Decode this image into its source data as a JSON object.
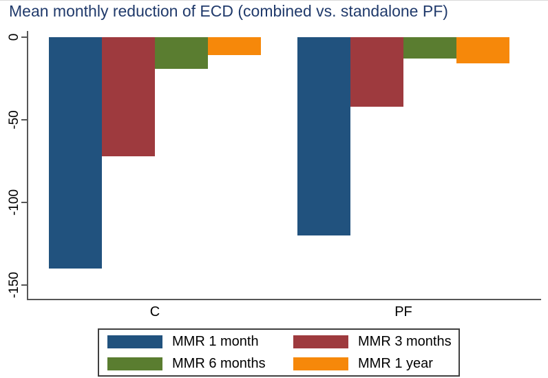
{
  "figure": {
    "title_color": "#203A6B",
    "background": "#FFFFFF"
  },
  "chart_data": {
    "type": "bar",
    "title": "Mean monthly reduction of ECD (combined vs. standalone PF)",
    "xlabel": "",
    "ylabel": "",
    "groups": [
      "C",
      "PF"
    ],
    "series": [
      {
        "name": "MMR 1 month",
        "color": "#21527E",
        "values": [
          -140,
          -120
        ]
      },
      {
        "name": "MMR 3 months",
        "color": "#9E3A3E",
        "values": [
          -72,
          -42
        ]
      },
      {
        "name": "MMR 6 months",
        "color": "#5A7D30",
        "values": [
          -19,
          -13
        ]
      },
      {
        "name": "MMR 1 year",
        "color": "#F6880A",
        "values": [
          -11,
          -16
        ]
      }
    ],
    "yticks": [
      0,
      -50,
      -100,
      -150
    ],
    "ylim": [
      0,
      -150
    ],
    "grid": false,
    "bar_direction": "negative-down",
    "legend_position": "bottom",
    "axis_color": "#565656"
  }
}
